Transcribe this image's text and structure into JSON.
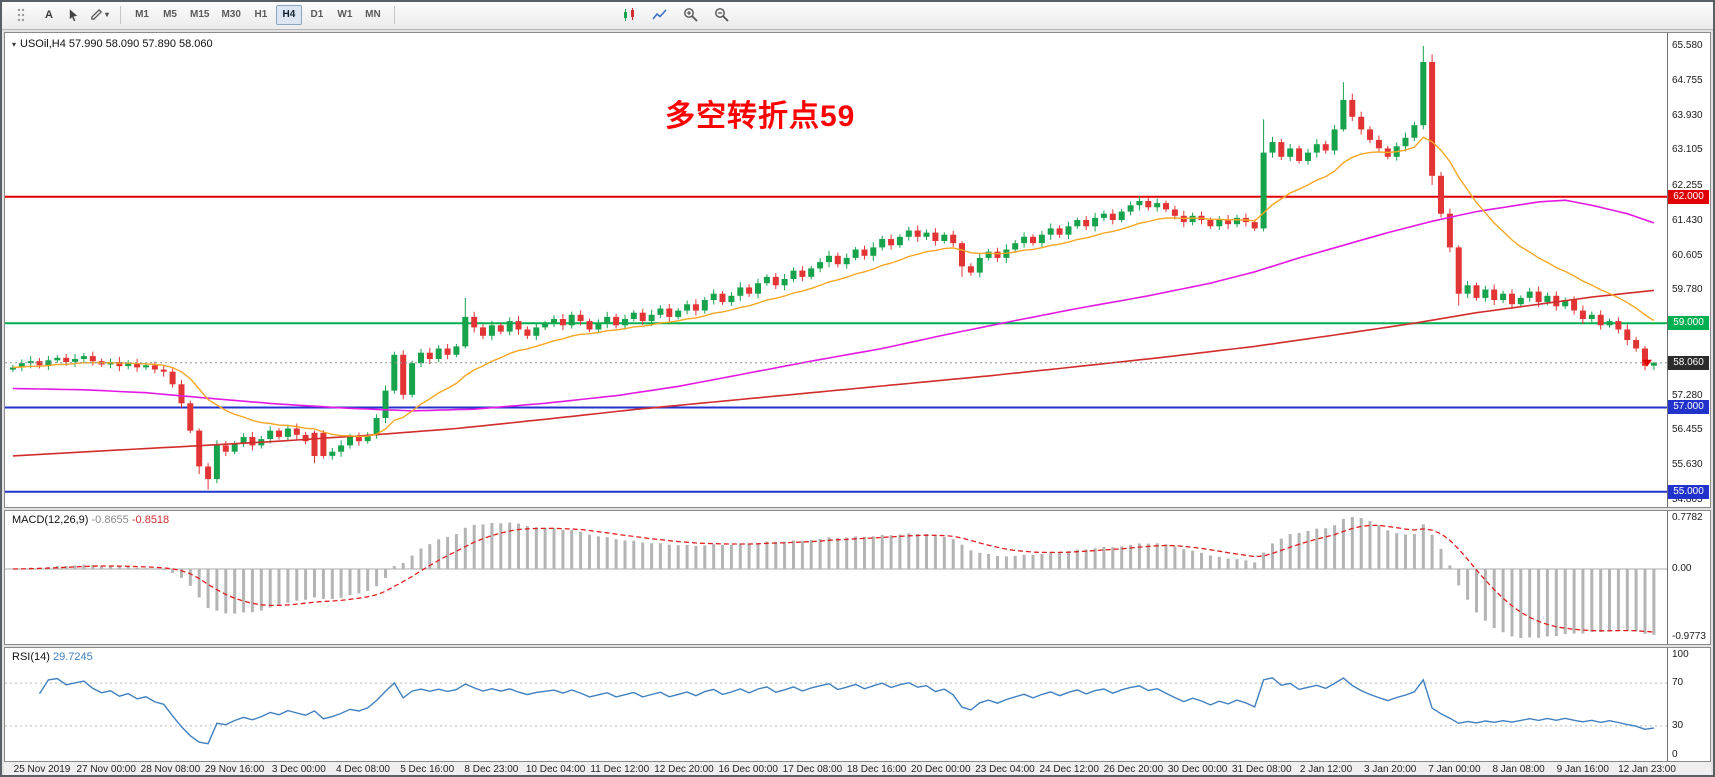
{
  "toolbar": {
    "tools": [
      {
        "label": "A"
      }
    ],
    "timeframes": [
      {
        "label": "M1"
      },
      {
        "label": "M5"
      },
      {
        "label": "M15"
      },
      {
        "label": "M30"
      },
      {
        "label": "H1"
      },
      {
        "label": "H4",
        "active": true
      },
      {
        "label": "D1"
      },
      {
        "label": "W1"
      },
      {
        "label": "MN"
      }
    ]
  },
  "main_chart": {
    "symbol_line": "USOil,H4 57.990 58.090 57.890 58.060",
    "annotation": {
      "text": "多空转折点59",
      "color": "#ff0000"
    }
  },
  "macd": {
    "label": "MACD(12,26,9)",
    "value_main": "-0.8655",
    "value_signal": "-0.8518",
    "scale_labels": [
      "0.7782",
      "0.00",
      "-0.9773"
    ]
  },
  "rsi": {
    "label": "RSI(14)",
    "value": "29.7245",
    "scale_labels": [
      "100",
      "70",
      "30",
      "0"
    ]
  },
  "chart_data": {
    "type": "candlestick",
    "symbol": "USOil",
    "timeframe": "H4",
    "current_bar": {
      "open": 57.99,
      "high": 58.09,
      "low": 57.89,
      "close": 58.06
    },
    "y_ticks": [
      65.58,
      64.755,
      63.93,
      63.105,
      62.255,
      61.43,
      60.605,
      59.78,
      57.28,
      56.455,
      55.63,
      54.805
    ],
    "levels": [
      {
        "price": 62.0,
        "label": "62.000",
        "color": "#e00000",
        "width": 2
      },
      {
        "price": 59.0,
        "label": "59.000",
        "color": "#00b050",
        "width": 2
      },
      {
        "price": 57.0,
        "label": "57.000",
        "color": "#2233cc",
        "width": 2
      },
      {
        "price": 55.0,
        "label": "55.000",
        "color": "#2233cc",
        "width": 2
      }
    ],
    "current_price": {
      "price": 58.06,
      "label": "58.060",
      "color": "#2b2b2b"
    },
    "open_first": 57.9,
    "default_wick": 0.06,
    "closes": [
      57.95,
      58.05,
      58.1,
      58.0,
      58.12,
      58.18,
      58.08,
      58.15,
      58.22,
      58.1,
      58.02,
      58.08,
      57.98,
      58.05,
      57.95,
      58.0,
      57.9,
      57.85,
      57.55,
      57.1,
      56.45,
      55.6,
      55.3,
      56.1,
      55.95,
      56.15,
      56.3,
      56.1,
      56.25,
      56.45,
      56.3,
      56.5,
      56.35,
      56.2,
      56.4,
      55.85,
      55.95,
      56.1,
      56.3,
      56.2,
      56.35,
      56.75,
      57.4,
      58.25,
      57.3,
      58.05,
      58.3,
      58.15,
      58.4,
      58.25,
      58.45,
      59.15,
      58.9,
      58.7,
      58.95,
      58.8,
      59.05,
      58.85,
      58.7,
      58.9,
      59.0,
      59.1,
      58.95,
      59.2,
      59.05,
      58.85,
      59.0,
      59.15,
      58.95,
      59.1,
      59.25,
      59.05,
      59.2,
      59.35,
      59.15,
      59.3,
      59.45,
      59.3,
      59.55,
      59.7,
      59.5,
      59.65,
      59.85,
      59.7,
      59.95,
      60.1,
      59.9,
      60.05,
      60.25,
      60.1,
      60.3,
      60.45,
      60.6,
      60.4,
      60.55,
      60.75,
      60.6,
      60.8,
      61.0,
      60.85,
      61.05,
      61.2,
      61.05,
      61.15,
      60.95,
      61.1,
      60.9,
      60.35,
      60.2,
      60.55,
      60.7,
      60.55,
      60.75,
      60.9,
      61.05,
      60.9,
      61.1,
      61.25,
      61.1,
      61.3,
      61.45,
      61.3,
      61.5,
      61.6,
      61.45,
      61.65,
      61.8,
      61.9,
      61.75,
      61.85,
      61.7,
      61.55,
      61.4,
      61.55,
      61.45,
      61.3,
      61.45,
      61.35,
      61.5,
      61.4,
      61.25,
      63.05,
      63.3,
      62.95,
      63.15,
      62.85,
      63.05,
      63.25,
      63.1,
      63.6,
      64.3,
      63.9,
      63.6,
      63.35,
      63.15,
      62.95,
      63.2,
      63.4,
      63.7,
      65.2,
      62.5,
      61.6,
      60.8,
      59.7,
      59.9,
      59.6,
      59.8,
      59.55,
      59.7,
      59.45,
      59.6,
      59.75,
      59.5,
      59.65,
      59.4,
      59.55,
      59.3,
      59.1,
      59.2,
      58.95,
      59.05,
      58.85,
      58.6,
      58.4,
      57.99,
      58.06
    ],
    "wick_overrides": {
      "21": [
        56.45,
        56.5,
        55.42,
        55.6
      ],
      "22": [
        55.6,
        55.68,
        55.05,
        55.3
      ],
      "23": [
        55.3,
        56.22,
        55.2,
        56.1
      ],
      "34": [
        56.4,
        56.45,
        55.68,
        55.85
      ],
      "51": [
        58.45,
        59.6,
        58.4,
        59.15
      ],
      "107": [
        60.9,
        60.95,
        60.1,
        60.35
      ],
      "141": [
        61.25,
        63.84,
        61.18,
        63.05
      ],
      "150": [
        63.6,
        64.72,
        63.55,
        64.3
      ],
      "151": [
        64.3,
        64.45,
        63.8,
        63.9
      ],
      "159": [
        63.7,
        65.58,
        63.6,
        65.2
      ],
      "160": [
        65.2,
        65.38,
        62.28,
        62.5
      ],
      "163": [
        60.8,
        60.85,
        59.42,
        59.7
      ],
      "184": [
        58.4,
        58.46,
        57.88,
        57.99
      ],
      "185": [
        57.99,
        58.09,
        57.89,
        58.06
      ]
    },
    "moving_averages": {
      "fast": {
        "type": "ema",
        "period": 16,
        "color": "#f5a623"
      },
      "mid": {
        "color": "#e319e3",
        "anchors": [
          [
            0,
            57.45
          ],
          [
            8,
            57.42
          ],
          [
            15,
            57.35
          ],
          [
            22,
            57.22
          ],
          [
            30,
            57.08
          ],
          [
            38,
            56.98
          ],
          [
            45,
            56.92
          ],
          [
            52,
            56.96
          ],
          [
            60,
            57.1
          ],
          [
            68,
            57.28
          ],
          [
            75,
            57.5
          ],
          [
            82,
            57.78
          ],
          [
            90,
            58.1
          ],
          [
            98,
            58.4
          ],
          [
            105,
            58.72
          ],
          [
            112,
            59.02
          ],
          [
            120,
            59.35
          ],
          [
            128,
            59.65
          ],
          [
            135,
            59.95
          ],
          [
            140,
            60.22
          ],
          [
            145,
            60.55
          ],
          [
            150,
            60.85
          ],
          [
            155,
            61.15
          ],
          [
            160,
            61.42
          ],
          [
            165,
            61.65
          ],
          [
            169,
            61.78
          ],
          [
            172,
            61.88
          ],
          [
            175,
            61.92
          ],
          [
            178,
            61.8
          ],
          [
            182,
            61.6
          ],
          [
            185,
            61.38
          ]
        ]
      },
      "slow": {
        "color": "#d22d2d",
        "anchors": [
          [
            0,
            55.85
          ],
          [
            10,
            55.97
          ],
          [
            20,
            56.08
          ],
          [
            30,
            56.2
          ],
          [
            40,
            56.34
          ],
          [
            50,
            56.5
          ],
          [
            60,
            56.72
          ],
          [
            70,
            56.95
          ],
          [
            80,
            57.15
          ],
          [
            90,
            57.35
          ],
          [
            100,
            57.55
          ],
          [
            110,
            57.75
          ],
          [
            120,
            57.97
          ],
          [
            130,
            58.2
          ],
          [
            140,
            58.45
          ],
          [
            150,
            58.75
          ],
          [
            158,
            59.0
          ],
          [
            165,
            59.25
          ],
          [
            172,
            59.45
          ],
          [
            178,
            59.62
          ],
          [
            185,
            59.78
          ]
        ]
      }
    },
    "macd": {
      "fast": 12,
      "slow": 26,
      "signal": 9,
      "current_main": -0.8655,
      "current_signal": -0.8518,
      "histogram_color": "#b4b4b4",
      "signal_color": "#e02020"
    },
    "rsi": {
      "period": 14,
      "current": 29.7245,
      "color": "#4080c0",
      "levels": [
        70,
        30
      ],
      "range": [
        0,
        100
      ]
    },
    "candle_colors": {
      "up": "#17a24c",
      "down": "#e23434"
    },
    "time_labels": [
      "25 Nov 2019",
      "27 Nov 00:00",
      "28 Nov 08:00",
      "29 Nov 16:00",
      "3 Dec 00:00",
      "4 Dec 08:00",
      "5 Dec 16:00",
      "8 Dec 23:00",
      "10 Dec 04:00",
      "11 Dec 12:00",
      "12 Dec 20:00",
      "16 Dec 00:00",
      "17 Dec 08:00",
      "18 Dec 16:00",
      "20 Dec 00:00",
      "23 Dec 04:00",
      "24 Dec 12:00",
      "26 Dec 20:00",
      "30 Dec 00:00",
      "31 Dec 08:00",
      "2 Jan 12:00",
      "3 Jan 20:00",
      "7 Jan 00:00",
      "8 Jan 08:00",
      "9 Jan 16:00",
      "12 Jan 23:00"
    ]
  }
}
